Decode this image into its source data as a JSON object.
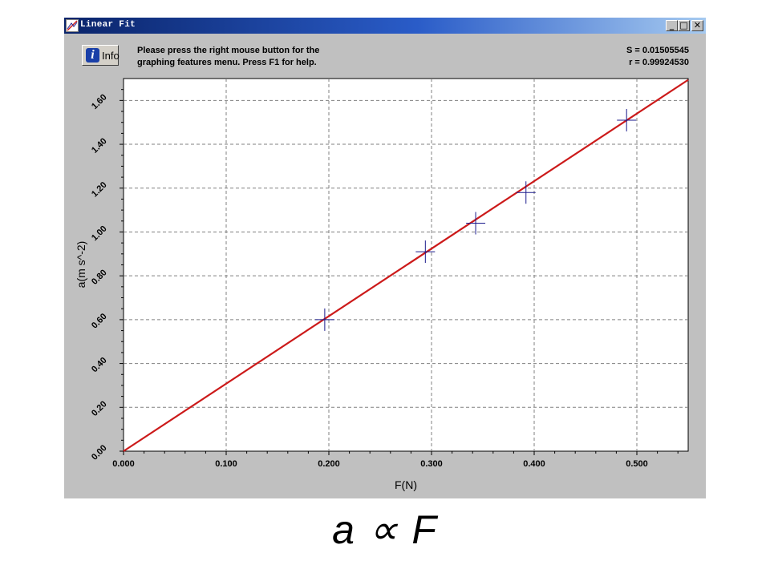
{
  "window": {
    "title": "Linear Fit",
    "controls": {
      "minimize": "_",
      "restore": "□",
      "close": "✕"
    }
  },
  "info_button": {
    "label": "Info",
    "icon": "info-icon"
  },
  "help_text": [
    "Please press the right mouse button for the",
    "graphing features menu.  Press F1 for help."
  ],
  "stats": {
    "s": "S = 0.01505545",
    "r": "r = 0.99924530"
  },
  "formula": "a ∝ F",
  "colors": {
    "fit_line": "#cc1a1a",
    "markers": "#1a1a8c",
    "window_bg": "#c0c0c0",
    "title_bar": "#0a246a"
  },
  "chart_data": {
    "type": "scatter",
    "xlabel": "F(N)",
    "ylabel": "a(m s^-2)",
    "xlim": [
      0,
      0.55
    ],
    "ylim": [
      0,
      1.7
    ],
    "xticks": [
      "0.000",
      "0.100",
      "0.200",
      "0.300",
      "0.400",
      "0.500"
    ],
    "yticks": [
      "0.00",
      "0.20",
      "0.40",
      "0.60",
      "0.80",
      "1.00",
      "1.20",
      "1.40",
      "1.60"
    ],
    "grid": true,
    "series": [
      {
        "x": [
          0.196,
          0.294,
          0.343,
          0.392,
          0.49
        ],
        "y": [
          0.6,
          0.91,
          1.04,
          1.18,
          1.51
        ]
      }
    ],
    "fit": {
      "slope": 3.08,
      "intercept": 0.0
    }
  }
}
